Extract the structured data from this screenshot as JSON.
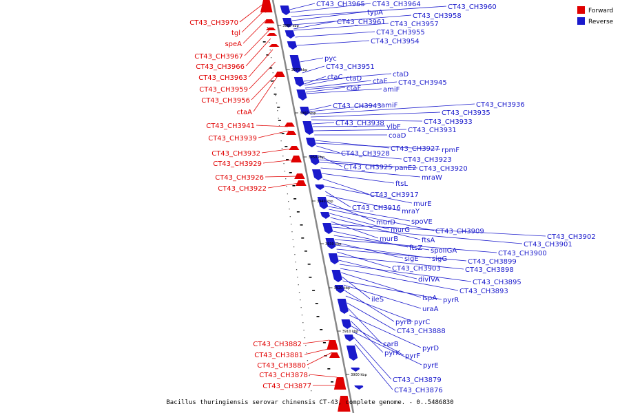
{
  "caption": "Bacillus thuringiensis serovar chinensis CT-43, complete genome. - 0..5486830",
  "legend": {
    "forward_label": "Forward",
    "forward_color": "#e00000",
    "reverse_label": "Reverse",
    "reverse_color": "#1a1acc"
  },
  "ticks": [
    "3980 kbp",
    "3970 kbp",
    "3960 kbp",
    "3950 kbp",
    "3940 kbp",
    "3930 kbp",
    "3920 kbp",
    "3910 kbp",
    "3900 kbp"
  ],
  "left_labels": [
    "CT43_CH3970",
    "tgl",
    "speA",
    "CT43_CH3967",
    "CT43_CH3966",
    "CT43_CH3963",
    "CT43_CH3959",
    "CT43_CH3956",
    "ctaA",
    "CT43_CH3941",
    "CT43_CH3939",
    "CT43_CH3932",
    "CT43_CH3929",
    "CT43_CH3926",
    "CT43_CH3922",
    "CT43_CH3882",
    "CT43_CH3881",
    "CT43_CH3880",
    "CT43_CH3878",
    "CT43_CH3877"
  ],
  "right_labels": [
    "CT43_CH3965",
    "CT43_CH3964",
    "CT43_CH3960",
    "typA",
    "CT43_CH3958",
    "CT43_CH3961",
    "CT43_CH3957",
    "CT43_CH3955",
    "CT43_CH3954",
    "pyc",
    "CT43_CH3951",
    "ctaD",
    "ctaC",
    "ctaD",
    "ctaE",
    "CT43_CH3945",
    "ctaF",
    "amiF",
    "CT43_CH3943",
    "amiF",
    "CT43_CH3936",
    "CT43_CH3935",
    "CT43_CH3933",
    "CT43_CH3938",
    "ylbF",
    "CT43_CH3931",
    "coaD",
    "CT43_CH3927",
    "rpmF",
    "CT43_CH3928",
    "CT43_CH3923",
    "CT43_CH3925",
    "panE2",
    "CT43_CH3920",
    "mraW",
    "ftsL",
    "CT43_CH3917",
    "murE",
    "CT43_CH3916",
    "mraY",
    "murD",
    "spoVE",
    "CT43_CH3909",
    "murG",
    "ftsA",
    "murB",
    "CT43_CH3902",
    "CT43_CH3901",
    "ftsZ",
    "spoIIGA",
    "CT43_CH3900",
    "sigE",
    "sigG",
    "CT43_CH3899",
    "CT43_CH3903",
    "CT43_CH3898",
    "divIVA",
    "CT43_CH3895",
    "CT43_CH3893",
    "lspA",
    "ileS",
    "pyrR",
    "uraA",
    "pyrB",
    "pyrC",
    "CT43_CH3888",
    "carB",
    "pyrD",
    "pyrK",
    "pyrF",
    "pyrE",
    "CT43_CH3879",
    "CT43_CH3876"
  ]
}
